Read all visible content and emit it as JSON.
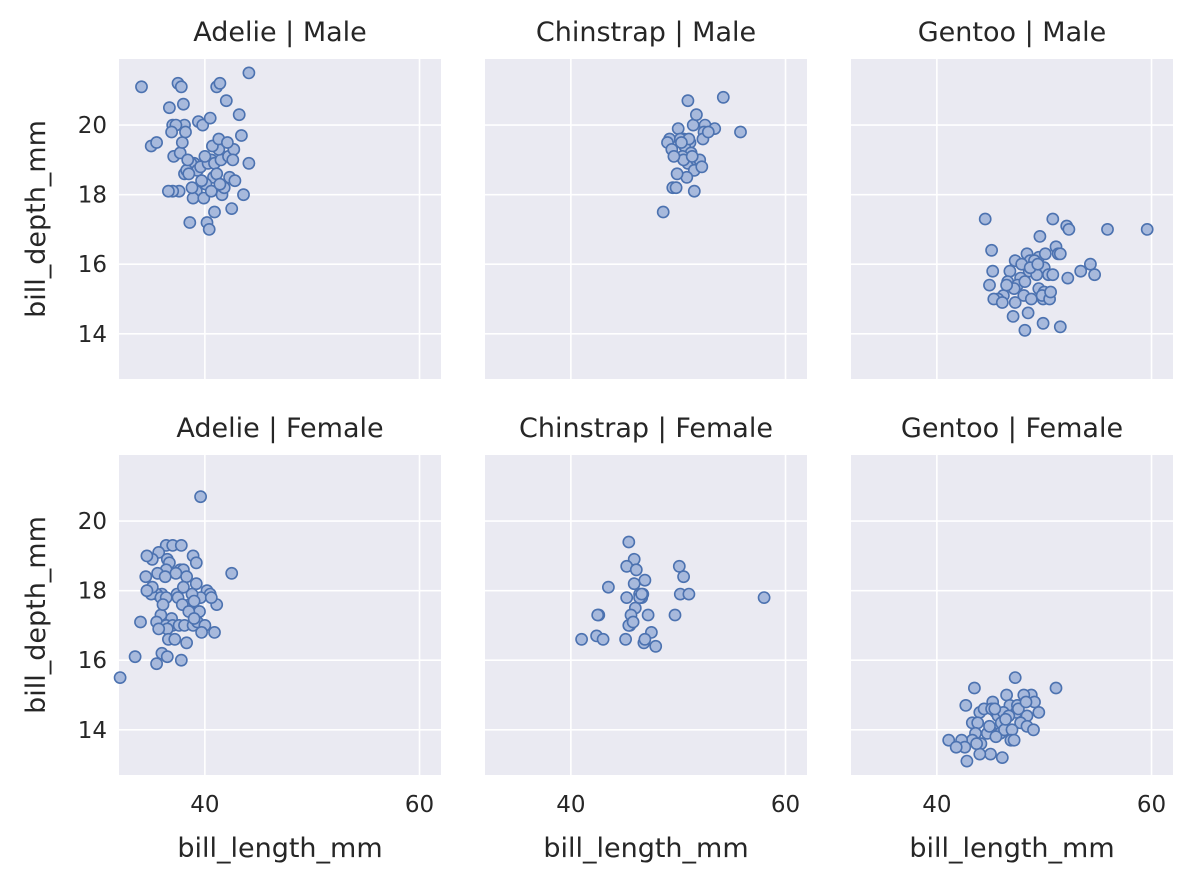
{
  "chart_data": {
    "type": "scatter",
    "xlabel": "bill_length_mm",
    "ylabel": "bill_depth_mm",
    "xlim": [
      32,
      62
    ],
    "ylim": [
      12.7,
      21.9
    ],
    "x_ticks": [
      40,
      60
    ],
    "y_ticks": [
      14,
      16,
      18,
      20
    ],
    "point_color": "#4c72b0",
    "point_fill": "#a7b9dc",
    "background": "#eaeaf2",
    "grid": true,
    "panels": [
      {
        "title": "Adelie | Male",
        "points": [
          [
            34.1,
            21.1
          ],
          [
            36.7,
            20.5
          ],
          [
            37.5,
            21.2
          ],
          [
            37.8,
            21.1
          ],
          [
            38.0,
            20.6
          ],
          [
            38.1,
            20.0
          ],
          [
            37.0,
            20.0
          ],
          [
            37.3,
            20.0
          ],
          [
            36.9,
            19.8
          ],
          [
            37.1,
            19.1
          ],
          [
            39.4,
            20.1
          ],
          [
            39.8,
            20.0
          ],
          [
            40.5,
            20.2
          ],
          [
            41.1,
            21.1
          ],
          [
            41.4,
            21.2
          ],
          [
            42.0,
            20.7
          ],
          [
            43.2,
            20.3
          ],
          [
            44.1,
            21.5
          ],
          [
            40.6,
            19.0
          ],
          [
            39.0,
            18.9
          ],
          [
            38.7,
            18.9
          ],
          [
            39.3,
            18.7
          ],
          [
            38.1,
            18.6
          ],
          [
            38.3,
            18.7
          ],
          [
            39.6,
            18.8
          ],
          [
            40.3,
            18.9
          ],
          [
            40.9,
            18.9
          ],
          [
            41.5,
            19.0
          ],
          [
            42.2,
            19.1
          ],
          [
            41.3,
            19.3
          ],
          [
            40.8,
            18.5
          ],
          [
            40.1,
            18.3
          ],
          [
            39.2,
            18.1
          ],
          [
            38.9,
            17.9
          ],
          [
            37.6,
            18.1
          ],
          [
            37.0,
            18.1
          ],
          [
            36.6,
            18.1
          ],
          [
            37.7,
            19.2
          ],
          [
            38.4,
            19.0
          ],
          [
            38.8,
            18.2
          ],
          [
            39.9,
            17.9
          ],
          [
            40.2,
            17.2
          ],
          [
            40.4,
            17.0
          ],
          [
            40.9,
            17.5
          ],
          [
            41.6,
            18.0
          ],
          [
            42.5,
            17.6
          ],
          [
            43.6,
            18.0
          ],
          [
            44.1,
            18.9
          ],
          [
            43.4,
            19.7
          ],
          [
            42.7,
            19.3
          ],
          [
            42.3,
            18.5
          ],
          [
            41.8,
            18.2
          ],
          [
            41.1,
            18.6
          ],
          [
            38.6,
            17.2
          ],
          [
            35.0,
            19.4
          ],
          [
            35.5,
            19.5
          ],
          [
            37.9,
            19.5
          ],
          [
            38.2,
            19.8
          ],
          [
            40.0,
            19.1
          ],
          [
            40.7,
            19.4
          ],
          [
            41.3,
            19.6
          ],
          [
            42.1,
            19.5
          ],
          [
            42.6,
            19.0
          ],
          [
            38.5,
            18.6
          ],
          [
            39.7,
            18.4
          ],
          [
            40.6,
            18.1
          ],
          [
            41.4,
            18.3
          ],
          [
            42.8,
            18.4
          ]
        ]
      },
      {
        "title": "Chinstrap | Male",
        "points": [
          [
            50.9,
            20.7
          ],
          [
            54.2,
            20.8
          ],
          [
            51.4,
            20.0
          ],
          [
            50.0,
            19.9
          ],
          [
            52.5,
            20.0
          ],
          [
            53.4,
            19.9
          ],
          [
            55.8,
            19.8
          ],
          [
            52.4,
            19.8
          ],
          [
            51.7,
            20.3
          ],
          [
            50.5,
            19.6
          ],
          [
            49.2,
            19.6
          ],
          [
            49.0,
            19.5
          ],
          [
            50.2,
            19.6
          ],
          [
            51.1,
            19.5
          ],
          [
            52.3,
            19.6
          ],
          [
            49.4,
            19.3
          ],
          [
            50.6,
            19.4
          ],
          [
            51.2,
            19.2
          ],
          [
            50.9,
            18.9
          ],
          [
            50.4,
            19.1
          ],
          [
            51.7,
            19.0
          ],
          [
            52.0,
            19.0
          ],
          [
            51.5,
            18.7
          ],
          [
            52.2,
            18.8
          ],
          [
            50.8,
            18.5
          ],
          [
            49.9,
            18.6
          ],
          [
            49.5,
            18.2
          ],
          [
            49.8,
            18.2
          ],
          [
            51.5,
            18.1
          ],
          [
            48.6,
            17.5
          ],
          [
            50.5,
            19.0
          ],
          [
            49.6,
            19.1
          ],
          [
            51.0,
            19.6
          ],
          [
            50.3,
            19.5
          ],
          [
            52.8,
            19.8
          ],
          [
            51.3,
            19.1
          ]
        ]
      },
      {
        "title": "Gentoo | Male",
        "points": [
          [
            44.5,
            17.3
          ],
          [
            50.8,
            17.3
          ],
          [
            52.1,
            17.1
          ],
          [
            52.3,
            17.0
          ],
          [
            55.9,
            17.0
          ],
          [
            59.6,
            17.0
          ],
          [
            49.6,
            16.8
          ],
          [
            45.1,
            16.4
          ],
          [
            51.1,
            16.5
          ],
          [
            51.3,
            16.3
          ],
          [
            48.4,
            16.3
          ],
          [
            49.5,
            16.2
          ],
          [
            50.1,
            16.3
          ],
          [
            51.5,
            16.3
          ],
          [
            48.7,
            16.1
          ],
          [
            47.3,
            16.1
          ],
          [
            49.2,
            16.0
          ],
          [
            54.3,
            16.0
          ],
          [
            49.0,
            15.9
          ],
          [
            50.0,
            15.9
          ],
          [
            48.6,
            15.8
          ],
          [
            46.8,
            15.8
          ],
          [
            45.2,
            15.8
          ],
          [
            50.4,
            15.7
          ],
          [
            49.3,
            15.7
          ],
          [
            52.2,
            15.6
          ],
          [
            53.4,
            15.8
          ],
          [
            54.7,
            15.7
          ],
          [
            50.8,
            15.7
          ],
          [
            47.8,
            15.6
          ],
          [
            46.6,
            15.5
          ],
          [
            47.5,
            15.4
          ],
          [
            47.2,
            15.3
          ],
          [
            48.2,
            15.5
          ],
          [
            49.5,
            15.3
          ],
          [
            50.0,
            15.2
          ],
          [
            49.9,
            15.0
          ],
          [
            48.1,
            15.1
          ],
          [
            46.2,
            15.1
          ],
          [
            45.7,
            15.0
          ],
          [
            45.3,
            15.0
          ],
          [
            47.3,
            14.9
          ],
          [
            48.5,
            14.6
          ],
          [
            47.1,
            14.5
          ],
          [
            49.9,
            14.3
          ],
          [
            51.5,
            14.2
          ],
          [
            48.2,
            14.1
          ],
          [
            46.5,
            15.4
          ],
          [
            44.9,
            15.4
          ],
          [
            46.1,
            14.9
          ],
          [
            49.8,
            15.1
          ],
          [
            50.5,
            15.0
          ],
          [
            48.8,
            15.0
          ],
          [
            47.9,
            16.0
          ],
          [
            49.1,
            16.1
          ],
          [
            50.6,
            15.2
          ],
          [
            48.7,
            15.9
          ],
          [
            49.4,
            16.0
          ]
        ]
      },
      {
        "title": "Adelie | Female",
        "points": [
          [
            39.6,
            20.7
          ],
          [
            36.4,
            19.3
          ],
          [
            37.0,
            19.3
          ],
          [
            37.8,
            19.3
          ],
          [
            35.7,
            19.1
          ],
          [
            35.1,
            18.9
          ],
          [
            34.6,
            19.0
          ],
          [
            36.5,
            18.9
          ],
          [
            38.9,
            19.0
          ],
          [
            39.2,
            18.8
          ],
          [
            36.7,
            18.8
          ],
          [
            37.7,
            18.6
          ],
          [
            38.0,
            18.6
          ],
          [
            36.4,
            18.6
          ],
          [
            35.6,
            18.5
          ],
          [
            42.5,
            18.5
          ],
          [
            36.3,
            18.4
          ],
          [
            38.3,
            18.4
          ],
          [
            34.5,
            18.4
          ],
          [
            40.2,
            18.0
          ],
          [
            40.5,
            17.9
          ],
          [
            39.6,
            17.8
          ],
          [
            38.8,
            17.9
          ],
          [
            37.4,
            17.9
          ],
          [
            36.0,
            17.9
          ],
          [
            35.5,
            17.9
          ],
          [
            35.0,
            17.9
          ],
          [
            35.9,
            17.8
          ],
          [
            36.4,
            17.8
          ],
          [
            37.5,
            17.8
          ],
          [
            38.6,
            17.6
          ],
          [
            39.0,
            17.7
          ],
          [
            37.9,
            17.6
          ],
          [
            41.1,
            17.6
          ],
          [
            39.5,
            17.4
          ],
          [
            38.5,
            17.4
          ],
          [
            36.9,
            17.2
          ],
          [
            35.9,
            17.3
          ],
          [
            35.5,
            17.1
          ],
          [
            34.0,
            17.1
          ],
          [
            36.4,
            17.0
          ],
          [
            37.0,
            17.0
          ],
          [
            37.6,
            17.0
          ],
          [
            38.1,
            17.0
          ],
          [
            38.9,
            17.0
          ],
          [
            39.3,
            17.1
          ],
          [
            40.0,
            17.0
          ],
          [
            36.5,
            16.9
          ],
          [
            35.7,
            16.9
          ],
          [
            36.6,
            16.6
          ],
          [
            37.2,
            16.6
          ],
          [
            38.3,
            16.5
          ],
          [
            39.7,
            16.8
          ],
          [
            40.9,
            16.8
          ],
          [
            36.0,
            16.2
          ],
          [
            36.5,
            16.1
          ],
          [
            37.8,
            16.0
          ],
          [
            35.5,
            15.9
          ],
          [
            33.5,
            16.1
          ],
          [
            32.1,
            15.5
          ],
          [
            35.1,
            18.1
          ],
          [
            38.0,
            18.1
          ],
          [
            39.0,
            17.2
          ],
          [
            34.6,
            18.0
          ],
          [
            36.1,
            17.6
          ],
          [
            37.3,
            18.5
          ],
          [
            39.2,
            18.2
          ],
          [
            40.6,
            17.8
          ]
        ]
      },
      {
        "title": "Chinstrap | Female",
        "points": [
          [
            45.4,
            19.4
          ],
          [
            45.9,
            18.9
          ],
          [
            45.2,
            18.7
          ],
          [
            46.1,
            18.6
          ],
          [
            50.1,
            18.7
          ],
          [
            50.5,
            18.4
          ],
          [
            45.9,
            18.2
          ],
          [
            43.5,
            18.1
          ],
          [
            46.9,
            18.3
          ],
          [
            46.4,
            17.9
          ],
          [
            46.6,
            17.8
          ],
          [
            45.2,
            17.8
          ],
          [
            46.7,
            17.9
          ],
          [
            50.2,
            17.9
          ],
          [
            51.0,
            17.9
          ],
          [
            58.0,
            17.8
          ],
          [
            46.0,
            17.5
          ],
          [
            42.6,
            17.3
          ],
          [
            42.5,
            17.3
          ],
          [
            45.6,
            17.3
          ],
          [
            47.2,
            17.3
          ],
          [
            49.7,
            17.3
          ],
          [
            45.5,
            17.0
          ],
          [
            45.4,
            17.0
          ],
          [
            45.8,
            17.1
          ],
          [
            47.5,
            16.8
          ],
          [
            41.0,
            16.6
          ],
          [
            42.4,
            16.7
          ],
          [
            43.0,
            16.6
          ],
          [
            45.1,
            16.6
          ],
          [
            46.8,
            16.5
          ],
          [
            46.9,
            16.6
          ],
          [
            47.9,
            16.4
          ],
          [
            46.4,
            17.8
          ],
          [
            46.6,
            17.9
          ]
        ]
      },
      {
        "title": "Gentoo | Female",
        "points": [
          [
            47.3,
            15.5
          ],
          [
            51.1,
            15.2
          ],
          [
            43.5,
            15.2
          ],
          [
            48.8,
            15.0
          ],
          [
            48.1,
            15.0
          ],
          [
            46.5,
            15.0
          ],
          [
            49.1,
            14.8
          ],
          [
            45.2,
            14.8
          ],
          [
            46.8,
            14.7
          ],
          [
            47.5,
            14.7
          ],
          [
            42.7,
            14.7
          ],
          [
            45.5,
            14.5
          ],
          [
            44.0,
            14.5
          ],
          [
            45.7,
            14.4
          ],
          [
            47.4,
            14.5
          ],
          [
            49.5,
            14.5
          ],
          [
            46.2,
            14.5
          ],
          [
            44.4,
            14.6
          ],
          [
            45.1,
            14.6
          ],
          [
            48.4,
            14.4
          ],
          [
            46.7,
            14.4
          ],
          [
            43.3,
            14.2
          ],
          [
            43.8,
            14.2
          ],
          [
            46.0,
            14.2
          ],
          [
            47.8,
            14.2
          ],
          [
            48.4,
            14.1
          ],
          [
            45.3,
            13.9
          ],
          [
            44.7,
            13.9
          ],
          [
            43.6,
            13.9
          ],
          [
            45.9,
            13.9
          ],
          [
            46.3,
            14.0
          ],
          [
            47.0,
            14.0
          ],
          [
            49.0,
            14.0
          ],
          [
            43.3,
            13.7
          ],
          [
            42.3,
            13.7
          ],
          [
            41.1,
            13.7
          ],
          [
            44.1,
            13.6
          ],
          [
            45.5,
            13.8
          ],
          [
            46.9,
            13.7
          ],
          [
            47.2,
            13.7
          ],
          [
            42.6,
            13.5
          ],
          [
            41.8,
            13.5
          ],
          [
            45.0,
            13.3
          ],
          [
            44.0,
            13.3
          ],
          [
            46.1,
            13.2
          ],
          [
            42.8,
            13.1
          ],
          [
            43.7,
            13.6
          ],
          [
            45.4,
            14.6
          ],
          [
            46.4,
            14.3
          ],
          [
            44.9,
            14.1
          ],
          [
            47.6,
            14.6
          ],
          [
            48.3,
            14.8
          ]
        ]
      }
    ]
  }
}
